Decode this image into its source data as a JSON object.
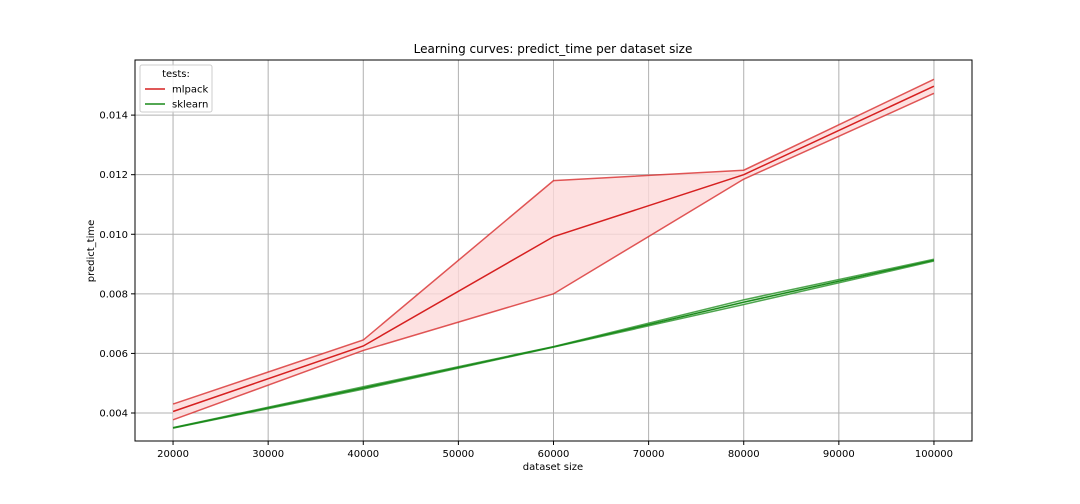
{
  "chart_data": {
    "type": "line",
    "title": "Learning curves: predict_time per dataset size",
    "xlabel": "dataset size",
    "ylabel": "predict_time",
    "x": [
      20000,
      40000,
      60000,
      80000,
      100000
    ],
    "xlim": [
      16000,
      104000
    ],
    "ylim": [
      0.00306,
      0.01585
    ],
    "xticks": [
      20000,
      30000,
      40000,
      50000,
      60000,
      70000,
      80000,
      90000,
      100000
    ],
    "yticks": [
      0.004,
      0.006,
      0.008,
      0.01,
      0.012,
      0.014
    ],
    "xtick_labels": [
      "20000",
      "30000",
      "40000",
      "50000",
      "60000",
      "70000",
      "80000",
      "90000",
      "100000"
    ],
    "ytick_labels": [
      "0.004",
      "0.006",
      "0.008",
      "0.010",
      "0.012",
      "0.014"
    ],
    "grid": true,
    "legend": {
      "title": "tests:",
      "placement": "top-left"
    },
    "series": [
      {
        "name": "mlpack",
        "color": "#d62020",
        "band_fill": "#fddada",
        "mean": [
          0.00405,
          0.00625,
          0.00992,
          0.012,
          0.01497
        ],
        "upper": [
          0.0043,
          0.00645,
          0.0118,
          0.01215,
          0.0152
        ],
        "lower": [
          0.00377,
          0.0061,
          0.008,
          0.01185,
          0.01473
        ]
      },
      {
        "name": "sklearn",
        "color": "#1a8a1a",
        "band_fill": "#cce8cc",
        "mean": [
          0.0035,
          0.00484,
          0.00622,
          0.00772,
          0.00913
        ],
        "upper": [
          0.00351,
          0.00488,
          0.00623,
          0.0078,
          0.00916
        ],
        "lower": [
          0.00349,
          0.0048,
          0.00621,
          0.00764,
          0.0091
        ]
      }
    ]
  }
}
